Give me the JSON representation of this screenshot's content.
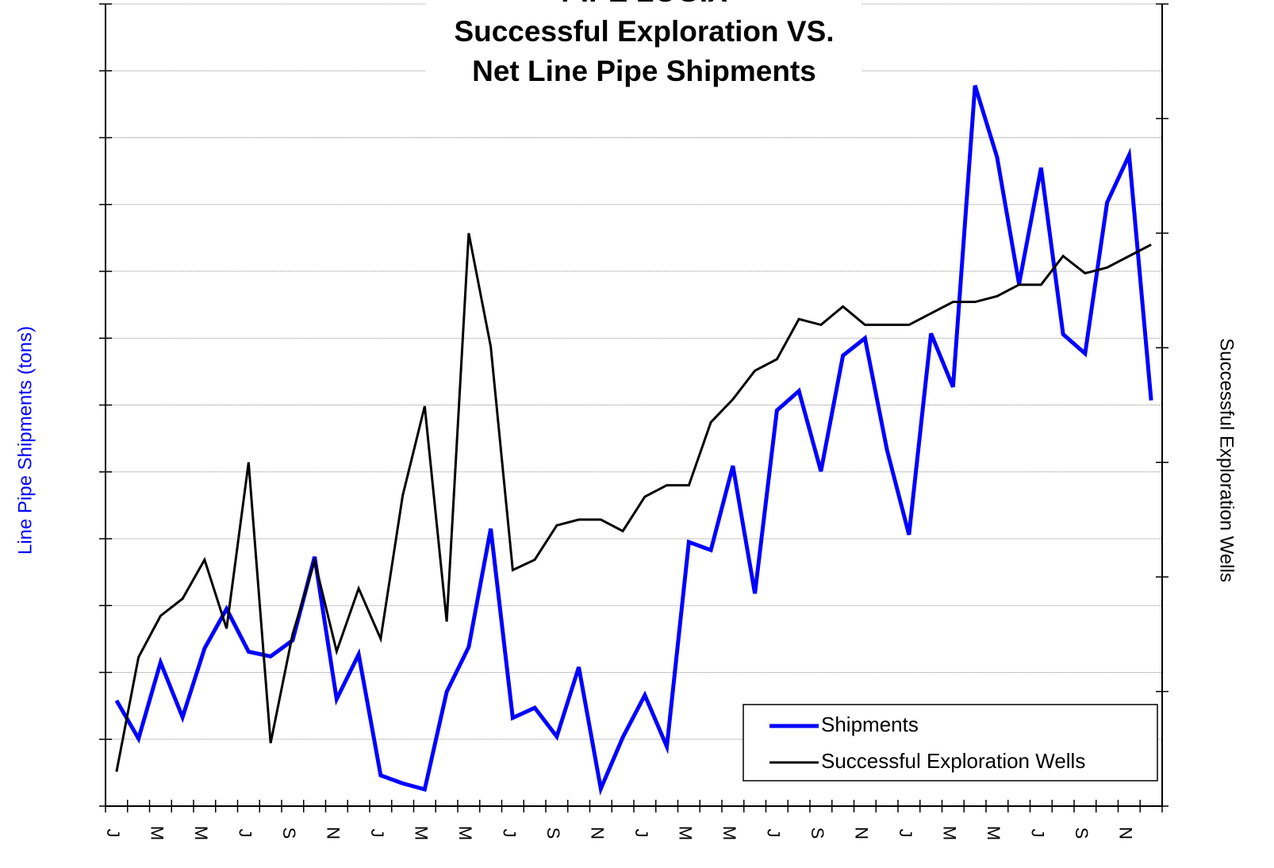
{
  "chart_data": {
    "type": "line",
    "title": [
      "PIPE LOGIX",
      "Successful Exploration VS.",
      "Net Line Pipe Shipments"
    ],
    "ylabel": "Line Pipe Shipments (tons)",
    "y2label": "Successful Exploration Wells",
    "categories": [
      "J",
      null,
      "M",
      null,
      "M",
      null,
      "J",
      null,
      "S",
      null,
      "N",
      null,
      "J",
      null,
      "M",
      null,
      "M",
      null,
      "J",
      null,
      "S",
      null,
      "N",
      null,
      "J",
      null,
      "M",
      null,
      "M",
      null,
      "J",
      null,
      "S",
      null,
      "N",
      null,
      "J",
      null,
      "M",
      null,
      "M",
      null,
      "J",
      null,
      "S",
      null,
      "N",
      null
    ],
    "series": [
      {
        "name": "Shipments",
        "color": "#0000ff",
        "axis": "y",
        "values": [
          1.58,
          1.01,
          2.15,
          1.33,
          2.36,
          2.95,
          2.31,
          2.24,
          2.48,
          3.73,
          1.6,
          2.27,
          0.46,
          0.34,
          0.25,
          1.71,
          2.38,
          4.15,
          1.32,
          1.47,
          1.04,
          2.08,
          0.26,
          1.03,
          1.66,
          0.89,
          3.95,
          3.83,
          5.09,
          3.18,
          5.92,
          6.21,
          5.01,
          6.74,
          7.0,
          5.33,
          4.06,
          7.07,
          6.27,
          10.78,
          9.71,
          7.81,
          9.55,
          7.06,
          6.77,
          9.03,
          9.74,
          6.07
        ]
      },
      {
        "name": "Successful Exploration Wells",
        "color": "#000000",
        "axis": "y2",
        "values": [
          0.3,
          1.3,
          1.66,
          1.81,
          2.15,
          1.55,
          3.0,
          0.55,
          1.5,
          2.14,
          1.35,
          1.9,
          1.46,
          2.71,
          3.49,
          1.61,
          5.0,
          4.01,
          2.06,
          2.15,
          2.45,
          2.5,
          2.5,
          2.4,
          2.7,
          2.8,
          2.8,
          3.35,
          3.55,
          3.8,
          3.9,
          4.25,
          4.2,
          4.36,
          4.2,
          4.2,
          4.2,
          4.3,
          4.4,
          4.4,
          4.45,
          4.55,
          4.55,
          4.8,
          4.65,
          4.7,
          4.8,
          4.9
        ]
      }
    ],
    "ylim": [
      0,
      12
    ],
    "yticks": [
      0,
      1,
      2,
      3,
      4,
      5,
      6,
      7,
      8,
      9,
      10,
      11,
      12
    ],
    "y2lim": [
      0,
      7
    ],
    "y2ticks": [
      0,
      1,
      2,
      3,
      4,
      5,
      6,
      7
    ],
    "grid": true,
    "legend": "lower right"
  }
}
